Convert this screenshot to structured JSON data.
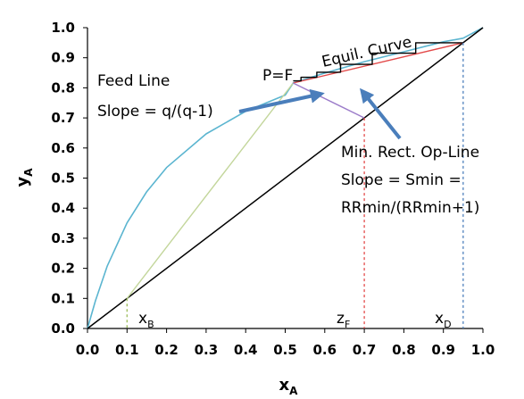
{
  "chart_data": {
    "type": "line",
    "xlabel": "x",
    "xlabel_sub": "A",
    "ylabel": "y",
    "ylabel_sub": "A",
    "xlim": [
      0,
      1
    ],
    "ylim": [
      0,
      1
    ],
    "x_ticks": [
      "0.0",
      "0.1",
      "0.2",
      "0.3",
      "0.4",
      "0.5",
      "0.6",
      "0.7",
      "0.8",
      "0.9",
      "1.0"
    ],
    "y_ticks": [
      "0.0",
      "0.1",
      "0.2",
      "0.3",
      "0.4",
      "0.5",
      "0.6",
      "0.7",
      "0.8",
      "0.9",
      "1.0"
    ],
    "grid": false,
    "series": [
      {
        "name": "Equil. Curve",
        "color": "#5bb5d0",
        "x": [
          0,
          0.02,
          0.05,
          0.1,
          0.15,
          0.2,
          0.3,
          0.4,
          0.5,
          0.52,
          0.6,
          0.7,
          0.8,
          0.9,
          0.95,
          1.0
        ],
        "y": [
          0,
          0.092,
          0.208,
          0.351,
          0.455,
          0.535,
          0.647,
          0.722,
          0.776,
          0.816,
          0.849,
          0.887,
          0.92,
          0.953,
          0.965,
          1.0
        ]
      },
      {
        "name": "diagonal",
        "color": "#000000",
        "x": [
          0,
          1
        ],
        "y": [
          0,
          1
        ]
      },
      {
        "name": "Feed Line",
        "color": "#c3d69b",
        "x": [
          0.1,
          0.52
        ],
        "y": [
          0.1,
          0.816
        ]
      },
      {
        "name": "Min. Rect. Op-Line",
        "color": "#e34a4a",
        "x": [
          0.52,
          0.95
        ],
        "y": [
          0.816,
          0.95
        ]
      },
      {
        "name": "zF-line",
        "color": "#9b7bc9",
        "x": [
          0.52,
          0.7
        ],
        "y": [
          0.816,
          0.7
        ]
      },
      {
        "name": "stairs",
        "color": "#000000",
        "x": [
          0.95,
          0.83,
          0.83,
          0.72,
          0.72,
          0.64,
          0.64,
          0.58,
          0.58,
          0.54,
          0.54,
          0.52
        ],
        "y": [
          0.95,
          0.95,
          0.915,
          0.915,
          0.878,
          0.878,
          0.852,
          0.852,
          0.835,
          0.835,
          0.823,
          0.823
        ]
      }
    ],
    "vertical_markers": [
      {
        "name": "xB",
        "x": 0.1,
        "y": 0.1,
        "color": "#9bbb59"
      },
      {
        "name": "zF",
        "x": 0.7,
        "y": 0.7,
        "color": "#e34a4a"
      },
      {
        "name": "xD",
        "x": 0.95,
        "y": 0.95,
        "color": "#4f81bd"
      }
    ],
    "annotations": {
      "equil_curve": "Equil. Curve",
      "feed_line_title": "Feed Line",
      "feed_line_slope": "Slope = q/(q-1)",
      "pf": "P=F",
      "min_rect_title": "Min. Rect. Op-Line",
      "min_rect_slope": "Slope = Smin =",
      "min_rect_formula": "RRmin/(RRmin+1)",
      "xb_main": "x",
      "xb_sub": "B",
      "zf_main": "z",
      "zf_sub": "F",
      "xd_main": "x",
      "xd_sub": "D"
    },
    "arrow_color": "#4a7ebb"
  }
}
